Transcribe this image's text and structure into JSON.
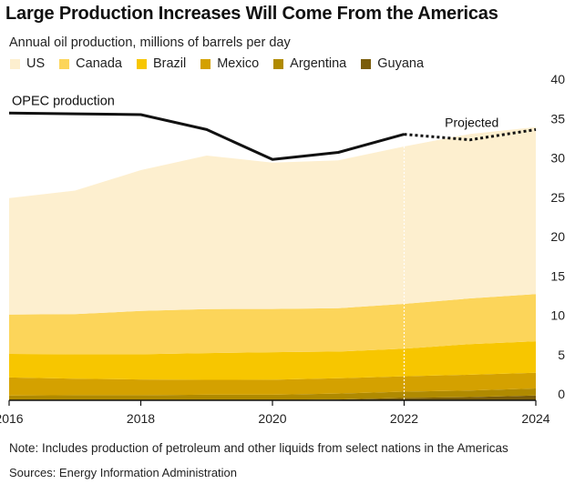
{
  "chart_data": {
    "type": "area",
    "title": "Large Production Increases Will Come From the Americas",
    "subtitle": "Annual oil production, millions of barrels per day",
    "x": [
      2016,
      2017,
      2018,
      2019,
      2020,
      2021,
      2022,
      2023,
      2024
    ],
    "x_ticks": [
      "2016",
      "2018",
      "2020",
      "2022",
      "2024"
    ],
    "y_ticks": [
      "0",
      "5",
      "10",
      "15",
      "20",
      "25",
      "30",
      "35",
      "40"
    ],
    "ylim": [
      0,
      40
    ],
    "xlim": [
      2016,
      2024
    ],
    "stacked": true,
    "projected_from": 2022,
    "series": [
      {
        "name": "Guyana",
        "color": "#7a5c0a",
        "values": [
          0,
          0,
          0,
          0,
          0.01,
          0.1,
          0.3,
          0.4,
          0.6
        ]
      },
      {
        "name": "Argentina",
        "color": "#b08a00",
        "values": [
          0.6,
          0.65,
          0.65,
          0.7,
          0.7,
          0.75,
          0.8,
          0.85,
          0.9
        ]
      },
      {
        "name": "Mexico",
        "color": "#d4a100",
        "values": [
          2.3,
          2.1,
          2.0,
          1.9,
          1.9,
          1.95,
          1.95,
          2.0,
          2.0
        ]
      },
      {
        "name": "Brazil",
        "color": "#f7c600",
        "values": [
          3.0,
          3.1,
          3.2,
          3.4,
          3.5,
          3.4,
          3.5,
          3.9,
          4.0
        ]
      },
      {
        "name": "Canada",
        "color": "#fcd55a",
        "values": [
          5.0,
          5.1,
          5.5,
          5.6,
          5.5,
          5.5,
          5.7,
          5.8,
          6.0
        ]
      },
      {
        "name": "US",
        "color": "#fdefcf",
        "values": [
          14.8,
          15.7,
          17.9,
          19.5,
          18.6,
          18.8,
          20.0,
          20.9,
          21.2
        ]
      }
    ],
    "line": {
      "name": "OPEC production",
      "projected_label": "Projected",
      "color": "#111111",
      "values": [
        36.5,
        36.4,
        36.3,
        34.4,
        30.6,
        31.5,
        33.8,
        33.1,
        34.4
      ]
    },
    "grid": false,
    "legend_position": "top-left"
  },
  "note": "Note: Includes production of petroleum and other liquids from select nations in the Americas",
  "source": "Sources: Energy Information Administration"
}
